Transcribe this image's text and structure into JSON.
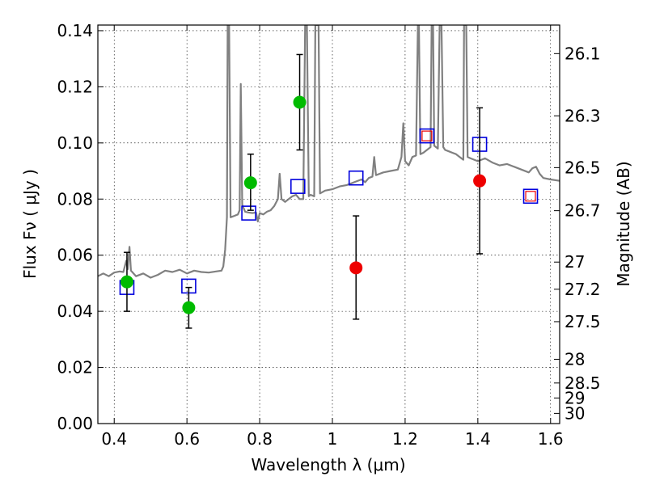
{
  "chart_data": {
    "type": "scatter",
    "xlabel": "Wavelength  λ (μm)",
    "ylabel": "Flux  Fν  ( μJy )",
    "y2label": "Magnitude (AB)",
    "xlim": [
      0.355,
      1.625
    ],
    "ylim": [
      0.0,
      0.142
    ],
    "grid": true,
    "x_ticks": [
      0.4,
      0.6,
      0.8,
      1.0,
      1.2,
      1.4,
      1.6
    ],
    "x_tick_labels": [
      "0.4",
      "0.6",
      "0.8",
      "1",
      "1.2",
      "1.4",
      "1.6"
    ],
    "y_ticks": [
      0.0,
      0.02,
      0.04,
      0.06,
      0.08,
      0.1,
      0.12,
      0.14
    ],
    "y_tick_labels": [
      "0.00",
      "0.02",
      "0.04",
      "0.06",
      "0.08",
      "0.10",
      "0.12",
      "0.14"
    ],
    "y2_ticks": [
      {
        "mag": 26.1,
        "label": "26.1"
      },
      {
        "mag": 26.3,
        "label": "26.3"
      },
      {
        "mag": 26.5,
        "label": "26.5"
      },
      {
        "mag": 26.7,
        "label": "26.7"
      },
      {
        "mag": 27.0,
        "label": "27"
      },
      {
        "mag": 27.2,
        "label": "27.2"
      },
      {
        "mag": 27.5,
        "label": "27.5"
      },
      {
        "mag": 28.0,
        "label": "28"
      },
      {
        "mag": 28.5,
        "label": "28.5"
      },
      {
        "mag": 29.0,
        "label": "29"
      },
      {
        "mag": 30.0,
        "label": "30"
      }
    ],
    "series": [
      {
        "type": "line",
        "color": "#808080",
        "points": [
          [
            0.355,
            0.0525
          ],
          [
            0.37,
            0.0535
          ],
          [
            0.385,
            0.0525
          ],
          [
            0.4,
            0.0538
          ],
          [
            0.415,
            0.0542
          ],
          [
            0.425,
            0.054
          ],
          [
            0.433,
            0.058
          ],
          [
            0.437,
            0.055
          ],
          [
            0.442,
            0.063
          ],
          [
            0.446,
            0.0545
          ],
          [
            0.46,
            0.0525
          ],
          [
            0.48,
            0.0535
          ],
          [
            0.5,
            0.052
          ],
          [
            0.52,
            0.053
          ],
          [
            0.54,
            0.0545
          ],
          [
            0.56,
            0.054
          ],
          [
            0.58,
            0.0548
          ],
          [
            0.6,
            0.0535
          ],
          [
            0.62,
            0.0545
          ],
          [
            0.64,
            0.054
          ],
          [
            0.66,
            0.0538
          ],
          [
            0.68,
            0.0542
          ],
          [
            0.695,
            0.0545
          ],
          [
            0.7,
            0.056
          ],
          [
            0.705,
            0.062
          ],
          [
            0.71,
            0.0735
          ],
          [
            0.712,
            0.142
          ],
          [
            0.716,
            0.142
          ],
          [
            0.72,
            0.0735
          ],
          [
            0.73,
            0.074
          ],
          [
            0.74,
            0.0745
          ],
          [
            0.745,
            0.076
          ],
          [
            0.748,
            0.121
          ],
          [
            0.752,
            0.078
          ],
          [
            0.76,
            0.0755
          ],
          [
            0.77,
            0.0752
          ],
          [
            0.78,
            0.075
          ],
          [
            0.79,
            0.0752
          ],
          [
            0.795,
            0.072
          ],
          [
            0.8,
            0.075
          ],
          [
            0.81,
            0.0745
          ],
          [
            0.82,
            0.0755
          ],
          [
            0.83,
            0.076
          ],
          [
            0.84,
            0.0775
          ],
          [
            0.85,
            0.08
          ],
          [
            0.855,
            0.089
          ],
          [
            0.86,
            0.08
          ],
          [
            0.87,
            0.079
          ],
          [
            0.88,
            0.08
          ],
          [
            0.89,
            0.081
          ],
          [
            0.9,
            0.0815
          ],
          [
            0.91,
            0.08
          ],
          [
            0.92,
            0.08
          ],
          [
            0.925,
            0.142
          ],
          [
            0.93,
            0.142
          ],
          [
            0.935,
            0.081
          ],
          [
            0.94,
            0.0815
          ],
          [
            0.95,
            0.081
          ],
          [
            0.953,
            0.142
          ],
          [
            0.962,
            0.142
          ],
          [
            0.966,
            0.082
          ],
          [
            0.98,
            0.083
          ],
          [
            1.0,
            0.0835
          ],
          [
            1.02,
            0.0845
          ],
          [
            1.04,
            0.085
          ],
          [
            1.06,
            0.086
          ],
          [
            1.08,
            0.087
          ],
          [
            1.09,
            0.086
          ],
          [
            1.1,
            0.0875
          ],
          [
            1.11,
            0.088
          ],
          [
            1.115,
            0.095
          ],
          [
            1.12,
            0.0885
          ],
          [
            1.13,
            0.089
          ],
          [
            1.14,
            0.0895
          ],
          [
            1.16,
            0.09
          ],
          [
            1.18,
            0.0905
          ],
          [
            1.19,
            0.095
          ],
          [
            1.195,
            0.107
          ],
          [
            1.2,
            0.0935
          ],
          [
            1.21,
            0.092
          ],
          [
            1.22,
            0.095
          ],
          [
            1.23,
            0.0955
          ],
          [
            1.235,
            0.142
          ],
          [
            1.238,
            0.142
          ],
          [
            1.242,
            0.096
          ],
          [
            1.25,
            0.0965
          ],
          [
            1.26,
            0.0975
          ],
          [
            1.27,
            0.0985
          ],
          [
            1.273,
            0.142
          ],
          [
            1.277,
            0.142
          ],
          [
            1.28,
            0.099
          ],
          [
            1.29,
            0.098
          ],
          [
            1.295,
            0.142
          ],
          [
            1.3,
            0.142
          ],
          [
            1.305,
            0.0985
          ],
          [
            1.31,
            0.0975
          ],
          [
            1.32,
            0.097
          ],
          [
            1.33,
            0.0965
          ],
          [
            1.34,
            0.096
          ],
          [
            1.35,
            0.095
          ],
          [
            1.36,
            0.094
          ],
          [
            1.362,
            0.142
          ],
          [
            1.368,
            0.142
          ],
          [
            1.372,
            0.095
          ],
          [
            1.38,
            0.0945
          ],
          [
            1.39,
            0.094
          ],
          [
            1.4,
            0.0935
          ],
          [
            1.42,
            0.0945
          ],
          [
            1.44,
            0.093
          ],
          [
            1.46,
            0.092
          ],
          [
            1.48,
            0.0925
          ],
          [
            1.5,
            0.0915
          ],
          [
            1.52,
            0.0905
          ],
          [
            1.54,
            0.0895
          ],
          [
            1.55,
            0.091
          ],
          [
            1.56,
            0.0915
          ],
          [
            1.57,
            0.089
          ],
          [
            1.58,
            0.0875
          ],
          [
            1.6,
            0.087
          ],
          [
            1.625,
            0.0865
          ]
        ]
      },
      {
        "type": "open-square",
        "color": "#0000dd",
        "inner_color": "#ee0000",
        "points": [
          {
            "x": 0.435,
            "y": 0.0485
          },
          {
            "x": 0.605,
            "y": 0.049
          },
          {
            "x": 0.77,
            "y": 0.075
          },
          {
            "x": 0.905,
            "y": 0.0845
          },
          {
            "x": 1.065,
            "y": 0.0875
          },
          {
            "x": 1.26,
            "y": 0.1025,
            "inner": true
          },
          {
            "x": 1.405,
            "y": 0.0995
          },
          {
            "x": 1.545,
            "y": 0.081,
            "inner": true
          }
        ]
      },
      {
        "type": "filled-circle-errorbar",
        "color": "#00bb00",
        "points": [
          {
            "x": 0.435,
            "y": 0.0505,
            "lo": 0.04,
            "hi": 0.061
          },
          {
            "x": 0.605,
            "y": 0.0413,
            "lo": 0.034,
            "hi": 0.0485
          },
          {
            "x": 0.775,
            "y": 0.0858,
            "lo": 0.076,
            "hi": 0.096
          },
          {
            "x": 0.91,
            "y": 0.1145,
            "lo": 0.0975,
            "hi": 0.1315
          }
        ]
      },
      {
        "type": "filled-circle-errorbar",
        "color": "#ee0000",
        "points": [
          {
            "x": 1.065,
            "y": 0.0555,
            "lo": 0.0372,
            "hi": 0.074
          },
          {
            "x": 1.405,
            "y": 0.0865,
            "lo": 0.0605,
            "hi": 0.1125
          }
        ]
      }
    ]
  }
}
